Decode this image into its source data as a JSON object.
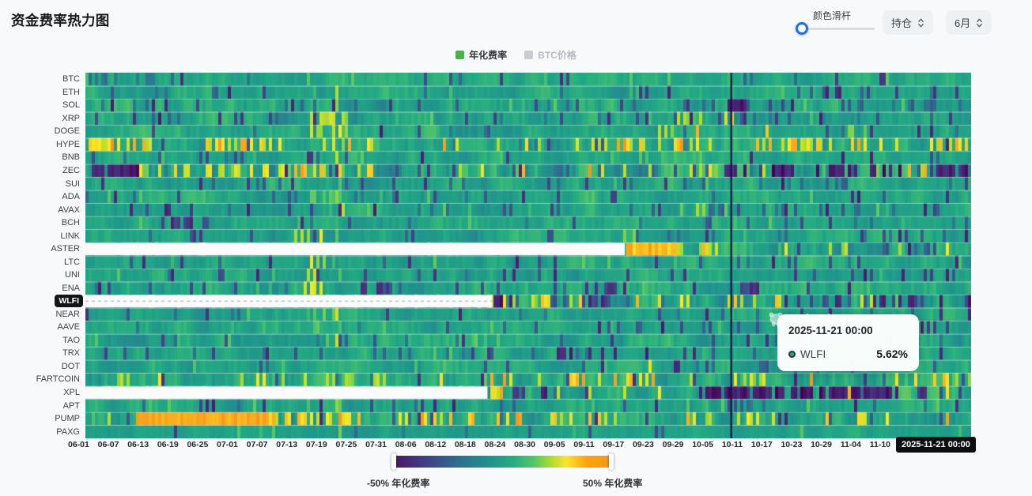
{
  "page": {
    "title": "资金费率热力图",
    "background": "#f8f9fa",
    "accent_blue": "#1a73e8"
  },
  "controls": {
    "slider_label": "颜色滑杆",
    "slider_position": 0,
    "select_position": "持仓",
    "select_month": "6月"
  },
  "legend": {
    "items": [
      {
        "label": "年化费率",
        "color": "#4caf50",
        "active": true
      },
      {
        "label": "BTC价格",
        "color": "#c8ccd2",
        "active": false
      }
    ]
  },
  "tooltip": {
    "date": "2025-11-21 00:00",
    "series": "WLFI",
    "value": "5.62%",
    "dot_color": "#2fa888"
  },
  "watermark": "coinglass",
  "colorbar": {
    "min_label": "-50% 年化费率",
    "max_label": "50% 年化费率"
  },
  "chart_data": {
    "type": "heatmap",
    "title": "资金费率热力图",
    "value_unit": "annualized funding rate %",
    "value_range": [
      -50,
      50
    ],
    "rows": [
      "BTC",
      "ETH",
      "SOL",
      "XRP",
      "DOGE",
      "HYPE",
      "BNB",
      "ZEC",
      "SUI",
      "ADA",
      "AVAX",
      "BCH",
      "LINK",
      "ASTER",
      "LTC",
      "UNI",
      "ENA",
      "WLFI",
      "NEAR",
      "AAVE",
      "TAO",
      "TRX",
      "DOT",
      "FARTCOIN",
      "XPL",
      "APT",
      "PUMP",
      "PAXG"
    ],
    "x_ticks": [
      "06-01",
      "06-07",
      "06-13",
      "06-19",
      "06-25",
      "07-01",
      "07-07",
      "07-13",
      "07-19",
      "07-25",
      "07-31",
      "08-06",
      "08-12",
      "08-18",
      "08-24",
      "08-30",
      "09-05",
      "09-11",
      "09-17",
      "09-23",
      "09-29",
      "10-05",
      "10-11",
      "10-17",
      "10-23",
      "10-29",
      "11-04",
      "11-10"
    ],
    "x_current": "2025-11-21 00:00",
    "highlighted_row": "WLFI",
    "highlighted_value": 5.62,
    "event_line_fraction": 0.729,
    "global_hot_column": {
      "x0": 0.282,
      "x1": 0.292,
      "p": 0.3,
      "lo": 20,
      "hi": 40
    },
    "colorscale_stops": [
      [
        0,
        "#440154"
      ],
      [
        0.1,
        "#482475"
      ],
      [
        0.2,
        "#414487"
      ],
      [
        0.3,
        "#355f8d"
      ],
      [
        0.4,
        "#2a788e"
      ],
      [
        0.5,
        "#21918c"
      ],
      [
        0.6,
        "#22a884"
      ],
      [
        0.7,
        "#44bf70"
      ],
      [
        0.8,
        "#7ad151"
      ],
      [
        0.88,
        "#bddf26"
      ],
      [
        0.94,
        "#fde725"
      ],
      [
        1,
        "#f7941d"
      ]
    ],
    "no_data_fraction": {
      "ASTER": 0.609,
      "WLFI": 0.459,
      "XPL": 0.454
    },
    "row_profiles": {
      "BTC": {
        "base": 9,
        "noise": 4,
        "purple_p": 0.05,
        "orange_p": 0,
        "zones": [
          {
            "x0": 0,
            "x1": 0.1,
            "p": 0.35,
            "lo": -6,
            "hi": -16
          },
          {
            "x0": 0.73,
            "x1": 0.76,
            "p": 0.3,
            "lo": -10,
            "hi": -20
          }
        ]
      },
      "ETH": {
        "base": 9,
        "noise": 5,
        "purple_p": 0.07,
        "orange_p": 0,
        "zones": [
          {
            "x0": 0.6,
            "x1": 0.7,
            "p": 0.15,
            "lo": 14,
            "hi": 22
          }
        ]
      },
      "SOL": {
        "base": 9,
        "noise": 6,
        "purple_p": 0.1,
        "orange_p": 0,
        "zones": [
          {
            "x0": 0.725,
            "x1": 0.745,
            "p": 1,
            "lo": -38,
            "hi": -48,
            "solid": true
          },
          {
            "x0": 0.75,
            "x1": 1,
            "p": 0.12,
            "lo": -10,
            "hi": -28
          }
        ]
      },
      "XRP": {
        "base": 8,
        "noise": 6,
        "purple_p": 0.12,
        "orange_p": 0.01,
        "zones": [
          {
            "x0": 0.25,
            "x1": 0.3,
            "p": 0.35,
            "lo": 30,
            "hi": 48
          },
          {
            "x0": 0.66,
            "x1": 0.7,
            "p": 0.3,
            "lo": 28,
            "hi": 45
          },
          {
            "x0": 0.73,
            "x1": 1,
            "p": 0.1,
            "lo": -10,
            "hi": -26
          }
        ]
      },
      "DOGE": {
        "base": 8,
        "noise": 6,
        "purple_p": 0.1,
        "orange_p": 0.01,
        "zones": [
          {
            "x0": 0.25,
            "x1": 0.3,
            "p": 0.45,
            "lo": 32,
            "hi": 50
          },
          {
            "x0": 0.64,
            "x1": 0.71,
            "p": 0.35,
            "lo": 30,
            "hi": 48
          },
          {
            "x0": 0.86,
            "x1": 0.88,
            "p": 0.3,
            "lo": 25,
            "hi": 40
          }
        ]
      },
      "HYPE": {
        "base": 9,
        "noise": 7,
        "purple_p": 0.05,
        "orange_p": 0.1,
        "zones": [
          {
            "x0": 0,
            "x1": 0.1,
            "p": 0.3,
            "lo": 35,
            "hi": 50
          },
          {
            "x0": 0.13,
            "x1": 0.19,
            "p": 0.3,
            "lo": 35,
            "hi": 50
          },
          {
            "x0": 0.55,
            "x1": 0.75,
            "p": 0.28,
            "lo": 35,
            "hi": 50
          },
          {
            "x0": 0.78,
            "x1": 0.84,
            "p": 0.3,
            "lo": 35,
            "hi": 50
          },
          {
            "x0": 0.95,
            "x1": 1,
            "p": 0.3,
            "lo": 35,
            "hi": 50
          }
        ]
      },
      "BNB": {
        "base": 9,
        "noise": 5,
        "purple_p": 0.06,
        "orange_p": 0,
        "zones": [
          {
            "x0": 0.6,
            "x1": 0.7,
            "p": 0.2,
            "lo": 16,
            "hi": 26
          }
        ]
      },
      "ZEC": {
        "base": 7,
        "noise": 10,
        "purple_p": 0.14,
        "orange_p": 0.1,
        "zones": [
          {
            "x0": 0,
            "x1": 0.06,
            "p": 0.75,
            "lo": -35,
            "hi": -50
          },
          {
            "x0": 0.06,
            "x1": 0.3,
            "p": 0.25,
            "lo": 25,
            "hi": 48
          },
          {
            "x0": 0.2,
            "x1": 0.27,
            "p": 0.4,
            "lo": 35,
            "hi": 50
          },
          {
            "x0": 0.72,
            "x1": 0.8,
            "p": 0.55,
            "lo": -30,
            "hi": -50
          },
          {
            "x0": 0.82,
            "x1": 0.92,
            "p": 0.6,
            "lo": -35,
            "hi": -50
          },
          {
            "x0": 0.955,
            "x1": 1,
            "p": 0.7,
            "lo": -35,
            "hi": -50
          }
        ]
      },
      "SUI": {
        "base": 8,
        "noise": 6,
        "purple_p": 0.1,
        "orange_p": 0,
        "zones": [
          {
            "x0": 0.73,
            "x1": 1,
            "p": 0.1,
            "lo": -8,
            "hi": -22
          }
        ]
      },
      "ADA": {
        "base": 8,
        "noise": 5,
        "purple_p": 0.08,
        "orange_p": 0,
        "zones": [
          {
            "x0": 0.25,
            "x1": 0.29,
            "p": 0.25,
            "lo": 20,
            "hi": 34
          }
        ]
      },
      "AVAX": {
        "base": 8,
        "noise": 5,
        "purple_p": 0.09,
        "orange_p": 0,
        "zones": [
          {
            "x0": 0.67,
            "x1": 0.7,
            "p": 0.3,
            "lo": 25,
            "hi": 40
          },
          {
            "x0": 0.73,
            "x1": 1,
            "p": 0.1,
            "lo": -8,
            "hi": -22
          }
        ]
      },
      "BCH": {
        "base": 9,
        "noise": 5,
        "purple_p": 0.07,
        "orange_p": 0,
        "zones": [
          {
            "x0": 0.09,
            "x1": 0.14,
            "p": 0.5,
            "lo": -22,
            "hi": -40
          },
          {
            "x0": 0.73,
            "x1": 1,
            "p": 0.08,
            "lo": -8,
            "hi": -20
          }
        ]
      },
      "LINK": {
        "base": 8,
        "noise": 5,
        "purple_p": 0.08,
        "orange_p": 0,
        "zones": [
          {
            "x0": 0.235,
            "x1": 0.275,
            "p": 0.55,
            "lo": 32,
            "hi": 50
          },
          {
            "x0": 0.6,
            "x1": 0.63,
            "p": 0.25,
            "lo": 22,
            "hi": 35
          }
        ]
      },
      "ASTER": {
        "base": 9,
        "noise": 7,
        "purple_p": 0.07,
        "orange_p": 0.06,
        "zones": [
          {
            "x0": 0.609,
            "x1": 0.665,
            "p": 1,
            "lo": 44,
            "hi": 50,
            "solid": true
          },
          {
            "x0": 0.665,
            "x1": 0.72,
            "p": 0.5,
            "lo": 30,
            "hi": 50
          },
          {
            "x0": 0.78,
            "x1": 0.86,
            "p": 0.15,
            "lo": 30,
            "hi": 45
          },
          {
            "x0": 0.9,
            "x1": 0.96,
            "p": 0.2,
            "lo": -15,
            "hi": -30
          }
        ]
      },
      "LTC": {
        "base": 8,
        "noise": 5,
        "purple_p": 0.08,
        "orange_p": 0,
        "zones": [
          {
            "x0": 0.25,
            "x1": 0.27,
            "p": 0.45,
            "lo": 30,
            "hi": 46
          }
        ]
      },
      "UNI": {
        "base": 8,
        "noise": 5,
        "purple_p": 0.09,
        "orange_p": 0,
        "zones": [
          {
            "x0": 0.25,
            "x1": 0.28,
            "p": 0.3,
            "lo": 24,
            "hi": 40
          }
        ]
      },
      "ENA": {
        "base": 8,
        "noise": 6,
        "purple_p": 0.09,
        "orange_p": 0,
        "zones": [
          {
            "x0": 0.245,
            "x1": 0.265,
            "p": 0.4,
            "lo": 30,
            "hi": 45
          },
          {
            "x0": 0.305,
            "x1": 0.345,
            "p": 0.5,
            "lo": -20,
            "hi": -40
          },
          {
            "x0": 0.56,
            "x1": 0.61,
            "p": 0.45,
            "lo": -25,
            "hi": -45
          },
          {
            "x0": 0.73,
            "x1": 0.77,
            "p": 0.4,
            "lo": -20,
            "hi": -40
          }
        ]
      },
      "WLFI": {
        "base": 7,
        "noise": 8,
        "purple_p": 0.12,
        "orange_p": 0.07,
        "zones": [
          {
            "x0": 0.459,
            "x1": 0.468,
            "p": 1,
            "lo": -38,
            "hi": -50,
            "solid": true
          },
          {
            "x0": 0.468,
            "x1": 0.53,
            "p": 0.5,
            "lo": 30,
            "hi": 50
          },
          {
            "x0": 0.55,
            "x1": 0.62,
            "p": 0.25,
            "lo": -15,
            "hi": -35
          },
          {
            "x0": 0.73,
            "x1": 0.8,
            "p": 0.3,
            "lo": 30,
            "hi": 48
          },
          {
            "x0": 0.8,
            "x1": 1,
            "p": 0.3,
            "lo": -20,
            "hi": -45
          }
        ]
      },
      "NEAR": {
        "base": 8,
        "noise": 5,
        "purple_p": 0.09,
        "orange_p": 0,
        "zones": [
          {
            "x0": 0.25,
            "x1": 0.28,
            "p": 0.3,
            "lo": 22,
            "hi": 36
          }
        ]
      },
      "AAVE": {
        "base": 9,
        "noise": 5,
        "purple_p": 0.07,
        "orange_p": 0,
        "zones": []
      },
      "TAO": {
        "base": 9,
        "noise": 6,
        "purple_p": 0.08,
        "orange_p": 0,
        "zones": [
          {
            "x0": 0.4,
            "x1": 0.5,
            "p": 0.15,
            "lo": 16,
            "hi": 28
          }
        ]
      },
      "TRX": {
        "base": 8,
        "noise": 5,
        "purple_p": 0.1,
        "orange_p": 0,
        "zones": [
          {
            "x0": 0.53,
            "x1": 0.55,
            "p": 0.7,
            "lo": -30,
            "hi": -48
          },
          {
            "x0": 0.3,
            "x1": 0.42,
            "p": 0.15,
            "lo": -12,
            "hi": -26
          }
        ]
      },
      "DOT": {
        "base": 8,
        "noise": 5,
        "purple_p": 0.09,
        "orange_p": 0,
        "zones": [
          {
            "x0": 0.63,
            "x1": 0.645,
            "p": 0.5,
            "lo": 30,
            "hi": 44
          },
          {
            "x0": 0.73,
            "x1": 0.77,
            "p": 0.3,
            "lo": -15,
            "hi": -32
          }
        ]
      },
      "FARTCOIN": {
        "base": 9,
        "noise": 7,
        "purple_p": 0.06,
        "orange_p": 0.05,
        "zones": [
          {
            "x0": 0.02,
            "x1": 0.06,
            "p": 0.3,
            "lo": 30,
            "hi": 48
          },
          {
            "x0": 0.19,
            "x1": 0.34,
            "p": 0.2,
            "lo": 30,
            "hi": 48
          },
          {
            "x0": 0.45,
            "x1": 0.48,
            "p": 0.5,
            "lo": 35,
            "hi": 50
          },
          {
            "x0": 0.54,
            "x1": 0.64,
            "p": 0.5,
            "lo": 35,
            "hi": 50
          },
          {
            "x0": 0.74,
            "x1": 0.78,
            "p": 0.3,
            "lo": 30,
            "hi": 45
          },
          {
            "x0": 0.96,
            "x1": 1,
            "p": 0.3,
            "lo": 30,
            "hi": 45
          }
        ]
      },
      "XPL": {
        "base": 7,
        "noise": 8,
        "purple_p": 0.12,
        "orange_p": 0.06,
        "zones": [
          {
            "x0": 0.454,
            "x1": 0.47,
            "p": 0.8,
            "lo": 35,
            "hi": 50
          },
          {
            "x0": 0.47,
            "x1": 0.52,
            "p": 0.6,
            "lo": -25,
            "hi": -48
          },
          {
            "x0": 0.69,
            "x1": 0.915,
            "p": 0.8,
            "lo": -35,
            "hi": -50
          },
          {
            "x0": 0.93,
            "x1": 1,
            "p": 0.3,
            "lo": -20,
            "hi": -40
          }
        ]
      },
      "APT": {
        "base": 8,
        "noise": 5,
        "purple_p": 0.09,
        "orange_p": 0,
        "zones": [
          {
            "x0": 0.125,
            "x1": 0.145,
            "p": 0.7,
            "lo": -28,
            "hi": -45
          },
          {
            "x0": 0.73,
            "x1": 0.78,
            "p": 0.25,
            "lo": -12,
            "hi": -28
          }
        ]
      },
      "PUMP": {
        "base": 8,
        "noise": 7,
        "purple_p": 0.05,
        "orange_p": 0.06,
        "zones": [
          {
            "x0": 0.055,
            "x1": 0.205,
            "p": 1,
            "lo": 47,
            "hi": 50,
            "solid": true
          },
          {
            "x0": 0.205,
            "x1": 0.3,
            "p": 0.45,
            "lo": 35,
            "hi": 50
          },
          {
            "x0": 0.3,
            "x1": 0.5,
            "p": 0.2,
            "lo": 35,
            "hi": 50
          },
          {
            "x0": 0.52,
            "x1": 0.62,
            "p": 0.3,
            "lo": 35,
            "hi": 50
          },
          {
            "x0": 0.7,
            "x1": 0.76,
            "p": 0.25,
            "lo": 32,
            "hi": 48
          },
          {
            "x0": 0.86,
            "x1": 0.9,
            "p": 0.3,
            "lo": 32,
            "hi": 48
          }
        ]
      },
      "PAXG": {
        "base": 7,
        "noise": 3,
        "purple_p": 0.04,
        "orange_p": 0,
        "zones": [
          {
            "x0": 0.3,
            "x1": 0.5,
            "p": 0.06,
            "lo": -8,
            "hi": -16
          }
        ]
      }
    }
  }
}
